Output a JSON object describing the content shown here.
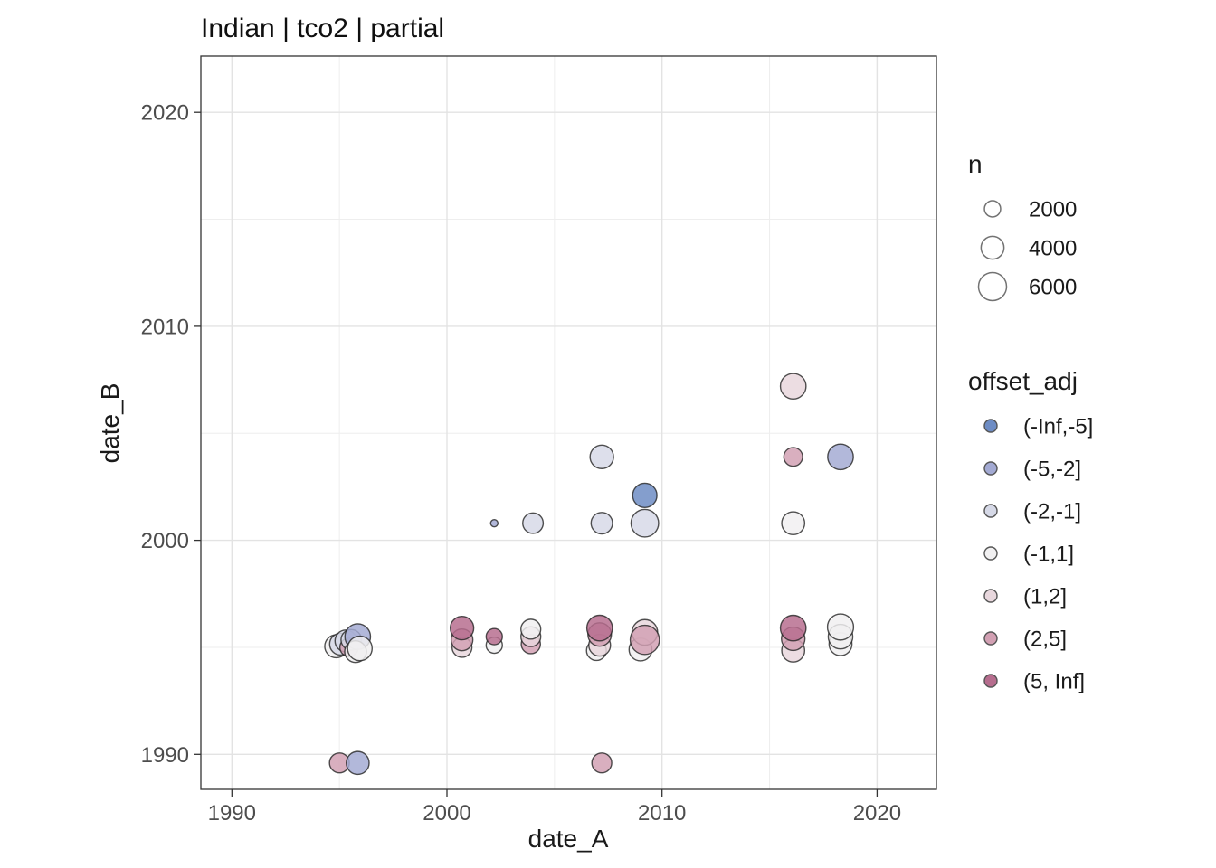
{
  "title": "Indian | tco2 | partial",
  "axes": {
    "x": {
      "label": "date_A",
      "major_ticks": [
        1990,
        2000,
        2010,
        2020
      ],
      "minor_ticks": [
        1995,
        2005,
        2015
      ],
      "range": [
        1988.6,
        2022.8
      ]
    },
    "y": {
      "label": "date_B",
      "major_ticks": [
        1990,
        2000,
        2010,
        2020
      ],
      "minor_ticks": [
        1995,
        2005,
        2015
      ],
      "range": [
        1988.4,
        2022.6
      ]
    }
  },
  "legend_n": {
    "title": "n",
    "sizes": [
      2000,
      4000,
      6000
    ]
  },
  "legend_offset": {
    "title": "offset_adj",
    "bins": [
      {
        "label": "(-Inf,-5]",
        "color": "#6d8cc4"
      },
      {
        "label": "(-5,-2]",
        "color": "#a3aad3"
      },
      {
        "label": "(-2,-1]",
        "color": "#d6d9e7"
      },
      {
        "label": "(-1,1]",
        "color": "#f1f0f1"
      },
      {
        "label": "(1,2]",
        "color": "#e8d7dd"
      },
      {
        "label": "(2,5]",
        "color": "#d2a0b3"
      },
      {
        "label": "(5, Inf]",
        "color": "#b66d8e"
      }
    ]
  },
  "style": {
    "grid_major_color": "#e3e3e3",
    "grid_minor_color": "#eeeeee",
    "panel_border_color": "#343434",
    "point_stroke_color": "#242424",
    "legend_key_stroke": "#737373"
  },
  "chart_data": {
    "type": "scatter",
    "subtype": "bubble",
    "title": "Indian | tco2 | partial",
    "xlabel": "date_A",
    "ylabel": "date_B",
    "size_var": "n",
    "color_var": "offset_adj",
    "grid": true,
    "legend_position": "right",
    "points": [
      {
        "x": 1994.85,
        "y": 1995.05,
        "n": 4000,
        "offset_adj": "(-1,1]"
      },
      {
        "x": 1995.05,
        "y": 1995.15,
        "n": 3600,
        "offset_adj": "(-2,-1]"
      },
      {
        "x": 1995.3,
        "y": 1995.3,
        "n": 3600,
        "offset_adj": "(-2,-1]"
      },
      {
        "x": 1995.45,
        "y": 1995.0,
        "n": 2600,
        "offset_adj": "(2,5]"
      },
      {
        "x": 1995.55,
        "y": 1995.35,
        "n": 3200,
        "offset_adj": "(-2,-1]"
      },
      {
        "x": 1995.85,
        "y": 1995.5,
        "n": 5000,
        "offset_adj": "(-5,-2]"
      },
      {
        "x": 1995.75,
        "y": 1994.8,
        "n": 3600,
        "offset_adj": "(-1,1]"
      },
      {
        "x": 1995.95,
        "y": 1994.95,
        "n": 4600,
        "offset_adj": "(-1,1]"
      },
      {
        "x": 2000.7,
        "y": 1995.0,
        "n": 3000,
        "offset_adj": "(1,2]"
      },
      {
        "x": 2000.7,
        "y": 1995.35,
        "n": 3600,
        "offset_adj": "(2,5]"
      },
      {
        "x": 2000.7,
        "y": 1995.9,
        "n": 4200,
        "offset_adj": "(5, Inf]"
      },
      {
        "x": 2002.2,
        "y": 1995.1,
        "n": 2000,
        "offset_adj": "(-1,1]"
      },
      {
        "x": 2002.2,
        "y": 1995.5,
        "n": 2000,
        "offset_adj": "(5, Inf]"
      },
      {
        "x": 2003.9,
        "y": 1995.15,
        "n": 2800,
        "offset_adj": "(2,5]"
      },
      {
        "x": 2003.9,
        "y": 1995.5,
        "n": 3000,
        "offset_adj": "(1,2]"
      },
      {
        "x": 2003.9,
        "y": 1995.85,
        "n": 3000,
        "offset_adj": "(-1,1]"
      },
      {
        "x": 2006.95,
        "y": 1994.85,
        "n": 3000,
        "offset_adj": "(-1,1]"
      },
      {
        "x": 2007.1,
        "y": 1995.1,
        "n": 3600,
        "offset_adj": "(1,2]"
      },
      {
        "x": 2007.1,
        "y": 1995.6,
        "n": 4200,
        "offset_adj": "(2,5]"
      },
      {
        "x": 2007.1,
        "y": 1995.9,
        "n": 5000,
        "offset_adj": "(5, Inf]"
      },
      {
        "x": 2009.0,
        "y": 1994.9,
        "n": 4000,
        "offset_adj": "(-1,1]"
      },
      {
        "x": 2009.2,
        "y": 1995.7,
        "n": 5000,
        "offset_adj": "(1,2]"
      },
      {
        "x": 2009.2,
        "y": 1995.35,
        "n": 6500,
        "offset_adj": "(2,5]"
      },
      {
        "x": 2016.1,
        "y": 1994.85,
        "n": 4000,
        "offset_adj": "(1,2]"
      },
      {
        "x": 2016.1,
        "y": 1995.4,
        "n": 4200,
        "offset_adj": "(2,5]"
      },
      {
        "x": 2016.1,
        "y": 1995.9,
        "n": 5000,
        "offset_adj": "(5, Inf]"
      },
      {
        "x": 2018.3,
        "y": 1995.15,
        "n": 4000,
        "offset_adj": "(-1,1]"
      },
      {
        "x": 2018.3,
        "y": 1995.5,
        "n": 4600,
        "offset_adj": "(-1,1]"
      },
      {
        "x": 2018.3,
        "y": 1995.95,
        "n": 5200,
        "offset_adj": "(-1,1]"
      },
      {
        "x": 2002.2,
        "y": 2000.8,
        "n": 400,
        "offset_adj": "(-5,-2]"
      },
      {
        "x": 2004.0,
        "y": 2000.8,
        "n": 3200,
        "offset_adj": "(-2,-1]"
      },
      {
        "x": 2007.2,
        "y": 2003.9,
        "n": 4200,
        "offset_adj": "(-2,-1]"
      },
      {
        "x": 2007.2,
        "y": 2000.8,
        "n": 3500,
        "offset_adj": "(-2,-1]"
      },
      {
        "x": 2009.2,
        "y": 2002.1,
        "n": 4500,
        "offset_adj": "(-Inf,-5]"
      },
      {
        "x": 2009.2,
        "y": 2000.8,
        "n": 5800,
        "offset_adj": "(-2,-1]"
      },
      {
        "x": 2016.1,
        "y": 2007.2,
        "n": 5000,
        "offset_adj": "(1,2]"
      },
      {
        "x": 2016.1,
        "y": 2003.9,
        "n": 2700,
        "offset_adj": "(2,5]"
      },
      {
        "x": 2018.3,
        "y": 2003.9,
        "n": 5000,
        "offset_adj": "(-5,-2]"
      },
      {
        "x": 2016.1,
        "y": 2000.8,
        "n": 4000,
        "offset_adj": "(-1,1]"
      },
      {
        "x": 1995.0,
        "y": 1989.6,
        "n": 3000,
        "offset_adj": "(2,5]"
      },
      {
        "x": 1995.85,
        "y": 1989.6,
        "n": 4000,
        "offset_adj": "(-5,-2]"
      },
      {
        "x": 2007.2,
        "y": 1989.6,
        "n": 3000,
        "offset_adj": "(2,5]"
      }
    ]
  }
}
